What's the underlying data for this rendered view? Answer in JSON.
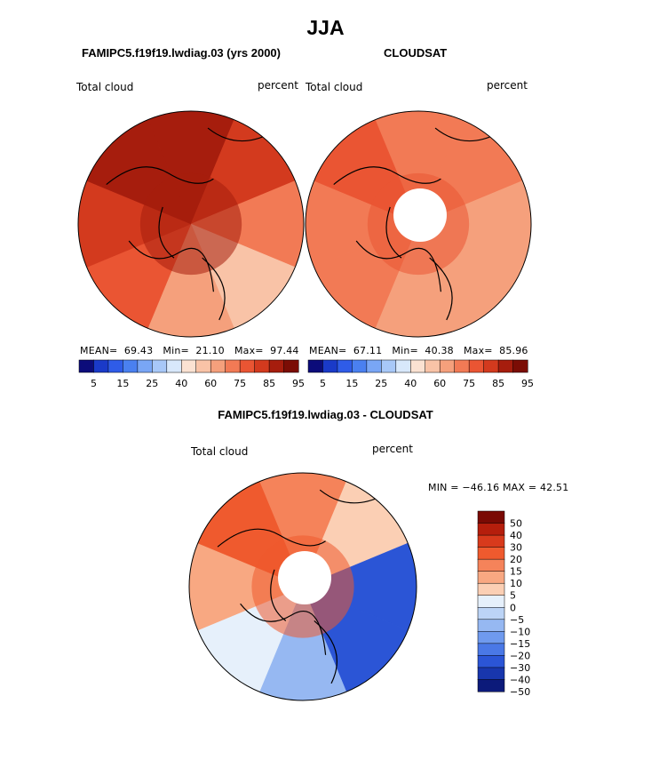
{
  "figure": {
    "season": "JJA"
  },
  "panels": {
    "model": {
      "title": "FAMIPC5.f19f19.lwdiag.03 (yrs 2000)",
      "variable": "Total cloud",
      "units": "percent",
      "mean_label": "MEAN=",
      "mean": "69.43",
      "min_label": "Min=",
      "min": "21.10",
      "max_label": "Max=",
      "max": "97.44"
    },
    "obs": {
      "title": "CLOUDSAT",
      "variable": "Total cloud",
      "units": "percent",
      "mean_label": "MEAN=",
      "mean": "67.11",
      "min_label": "Min=",
      "min": "40.38",
      "max_label": "Max=",
      "max": "85.96"
    },
    "diff": {
      "title": "FAMIPC5.f19f19.lwdiag.03 - CLOUDSAT",
      "variable": "Total cloud",
      "units": "percent",
      "minmax_text": "MIN = −46.16 MAX =  42.51"
    }
  },
  "chart_data": [
    {
      "type": "heatmap",
      "projection": "polar stereographic (north pole)",
      "title": "FAMIPC5.f19f19.lwdiag.03 (yrs 2000)",
      "variable": "Total cloud",
      "units": "percent",
      "stats": {
        "mean": 69.43,
        "min": 21.1,
        "max": 97.44
      },
      "colorbar_labels": [
        "5",
        "15",
        "25",
        "40",
        "60",
        "75",
        "85",
        "95"
      ],
      "regions": [
        {
          "lon": 0,
          "value": 88
        },
        {
          "lon": 45,
          "value": 80
        },
        {
          "lon": 90,
          "value": 72
        },
        {
          "lon": 135,
          "value": 55
        },
        {
          "lon": 180,
          "value": 64
        },
        {
          "lon": 225,
          "value": 74
        },
        {
          "lon": 270,
          "value": 82
        },
        {
          "lon": 315,
          "value": 91
        }
      ]
    },
    {
      "type": "heatmap",
      "projection": "polar stereographic (north pole)",
      "title": "CLOUDSAT",
      "variable": "Total cloud",
      "units": "percent",
      "stats": {
        "mean": 67.11,
        "min": 40.38,
        "max": 85.96
      },
      "colorbar_labels": [
        "5",
        "15",
        "25",
        "40",
        "60",
        "75",
        "85",
        "95"
      ],
      "regions": [
        {
          "lon": 0,
          "value": 72
        },
        {
          "lon": 45,
          "value": 68
        },
        {
          "lon": 90,
          "value": 62
        },
        {
          "lon": 135,
          "value": 64
        },
        {
          "lon": 180,
          "value": 66
        },
        {
          "lon": 225,
          "value": 70
        },
        {
          "lon": 270,
          "value": 73
        },
        {
          "lon": 315,
          "value": 78
        }
      ]
    },
    {
      "type": "heatmap",
      "projection": "polar stereographic (north pole)",
      "title": "FAMIPC5.f19f19.lwdiag.03 - CLOUDSAT",
      "variable": "Total cloud",
      "units": "percent",
      "stats": {
        "min": -46.16,
        "max": 42.51
      },
      "colorbar_labels": [
        "50",
        "40",
        "30",
        "20",
        "15",
        "10",
        "5",
        "0",
        "−5",
        "−10",
        "−15",
        "−20",
        "−30",
        "−40",
        "−50"
      ],
      "regions": [
        {
          "lon": 0,
          "value": 18
        },
        {
          "lon": 45,
          "value": 6
        },
        {
          "lon": 90,
          "value": -22
        },
        {
          "lon": 135,
          "value": -28
        },
        {
          "lon": 180,
          "value": -8
        },
        {
          "lon": 225,
          "value": 4
        },
        {
          "lon": 270,
          "value": 12
        },
        {
          "lon": 315,
          "value": 22
        }
      ]
    }
  ],
  "colors": {
    "abs_scale": [
      "#0c0c7a",
      "#1a3ac8",
      "#2f5ce8",
      "#4a80f0",
      "#79a6f5",
      "#a8c8f8",
      "#d8e8fb",
      "#fbe2d2",
      "#f9c3a7",
      "#f5a07c",
      "#f27a55",
      "#ea5533",
      "#d33a1e",
      "#a61d0d",
      "#7b0d05"
    ],
    "diff_scale": [
      "#7a0a04",
      "#b51e0c",
      "#d83a1c",
      "#ef5a2e",
      "#f5835a",
      "#f8a882",
      "#fbcfb4",
      "#e6f0fb",
      "#bcd4f6",
      "#96b8f2",
      "#6f9aee",
      "#4a78e6",
      "#2b55d6",
      "#1836ad",
      "#0c1a7a"
    ],
    "land_line": "#000000",
    "pole_hole": "#ffffff"
  }
}
